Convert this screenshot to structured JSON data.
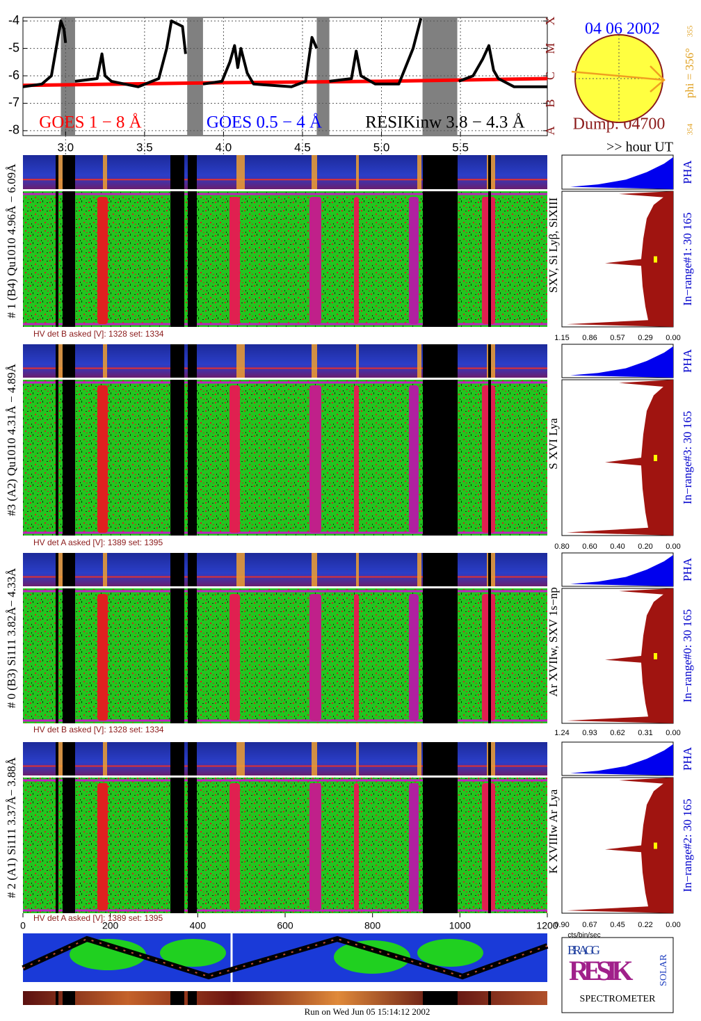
{
  "chart_data": {
    "type": "line",
    "xlim": [
      2.73,
      6.05
    ],
    "xticks": [
      {
        "value": 3,
        "label": "3.0"
      },
      3.5,
      {
        "value": 4,
        "label": "4.0"
      },
      4.5,
      {
        "value": 5,
        "label": "5.0"
      },
      5.5
    ],
    "ylim": [
      -8.18,
      -3.87
    ],
    "yticks": [
      -4,
      -5,
      -6,
      -7,
      -8
    ],
    "y2lim": [
      -8.18,
      -3.87
    ],
    "y2ticks": [
      {
        "value": -4,
        "label": "X"
      },
      {
        "value": -5,
        "label": "M"
      },
      {
        "value": -6,
        "label": "C"
      },
      {
        "value": -7,
        "label": "B"
      },
      {
        "value": -8,
        "label": "A"
      }
    ],
    "x_label": ">> hour UT",
    "grid": true,
    "gaps": [
      [
        2.97,
        3.06
      ],
      [
        3.77,
        3.87
      ],
      [
        4.59,
        4.67
      ],
      [
        5.26,
        5.48
      ]
    ],
    "series": [
      {
        "name": "GOES 1 − 8 Å",
        "color": "#ff0000",
        "x": [
          2.73,
          4.0,
          5.0,
          6.05
        ],
        "values": [
          -6.35,
          -6.25,
          -6.2,
          -6.1
        ]
      },
      {
        "name": "GOES 0.5 − 4 Å",
        "color": "#0000ff"
      },
      {
        "name": "RESIKinw 3.8 − 4.3 Å",
        "color": "#000000",
        "x": [
          2.73,
          2.85,
          2.91,
          2.94,
          2.97,
          2.99,
          3.0,
          3.03,
          3.06,
          3.2,
          3.23,
          3.25,
          3.29,
          3.46,
          3.59,
          3.64,
          3.67,
          3.74,
          3.76,
          3.82,
          3.87,
          3.99,
          4.04,
          4.07,
          4.09,
          4.11,
          4.15,
          4.19,
          4.43,
          4.52,
          4.56,
          4.59,
          4.63,
          4.67,
          4.81,
          4.84,
          4.87,
          4.96,
          5.11,
          5.2,
          5.25,
          5.37,
          5.49,
          5.58,
          5.64,
          5.68,
          5.71,
          5.74,
          5.84,
          6.05
        ],
        "values": [
          -6.4,
          -6.3,
          -6.0,
          -5.0,
          -4.0,
          -4.3,
          -4.8,
          null,
          -6.2,
          -6.1,
          -5.2,
          -6.0,
          -6.2,
          -6.4,
          -6.1,
          -5.0,
          -4.0,
          -4.2,
          -5.2,
          null,
          -6.3,
          -6.2,
          -5.5,
          -4.9,
          -5.7,
          -5.0,
          -5.9,
          -6.3,
          -6.4,
          -6.2,
          -4.6,
          -5.0,
          null,
          -6.2,
          -6.1,
          -5.1,
          -6.0,
          -6.3,
          -6.3,
          -5.0,
          -3.9,
          null,
          -6.2,
          -6.0,
          -5.4,
          -4.9,
          -5.8,
          -6.1,
          -6.4,
          -6.4
        ]
      }
    ]
  },
  "sun": {
    "date": "04 06 2002",
    "dump": "Dump: 04700",
    "phi": "phi = 356°",
    "phi_upper": "355",
    "phi_lower": "354"
  },
  "detectors": [
    {
      "label": "# 1 (B4) Qu1010 4.96Å − 6.09Å",
      "lines": "SXV, Si Lyβ, SiXIII",
      "pha": "PHA",
      "inrange": "In−range#1:  30 165",
      "hv": "HV det B asked [V]:  1328 set:  1334",
      "ticks": [
        "1.15",
        "0.86",
        "0.57",
        "0.29",
        "0.00"
      ]
    },
    {
      "label": "#3 (A2) Qu1010  4.31Å − 4.89Å",
      "lines": "S XVI Lya",
      "pha": "PHA",
      "inrange": "In−range#3:   30 165",
      "hv": "HV det A asked [V]:  1389 set:  1395",
      "ticks": [
        "0.80",
        "0.60",
        "0.40",
        "0.20",
        "0.00"
      ]
    },
    {
      "label": "# 0 (B3) Si111  3.82Å− 4.33Å",
      "lines": "Ar XVIIw,  SXV 1s−np",
      "pha": "PHA",
      "inrange": "In−range#0:   30 165",
      "hv": "HV det B asked [V]:  1328 set:  1334",
      "ticks": [
        "1.24",
        "0.93",
        "0.62",
        "0.31",
        "0.00"
      ]
    },
    {
      "label": "# 2 (A1) Si111  3.37Å− 3.88Å",
      "lines": "K XVIIIw  Ar Lya",
      "pha": "PHA",
      "inrange": "In−range#2:   30 165",
      "hv": "HV det A asked [V]:  1389 set:  1395",
      "ticks": [
        "0.90",
        "0.67",
        "0.45",
        "0.22",
        "0.00"
      ]
    }
  ],
  "bin_axis": {
    "lim": [
      0,
      1200
    ],
    "ticks": [
      0,
      200,
      400,
      600,
      800,
      1000,
      1200
    ]
  },
  "rate_label": "cts/bin/sec",
  "footer": "Run on Wed Jun 05 15:14:12 2002",
  "logo": {
    "top": "BRAGG",
    "middle": "RESIK",
    "side": "SOLAR",
    "name": "SPECTROMETER"
  }
}
